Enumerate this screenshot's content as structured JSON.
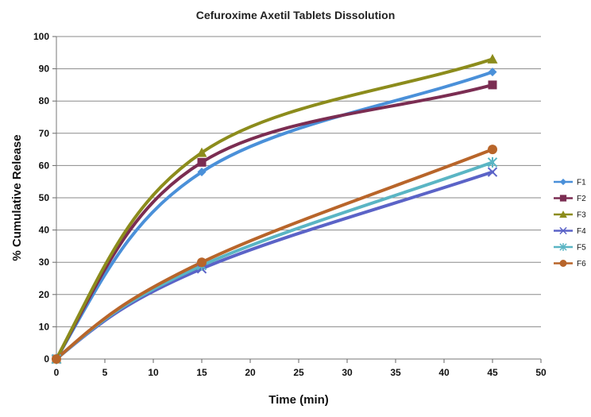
{
  "chart_data": {
    "type": "line",
    "title": "Cefuroxime Axetil Tablets Dissolution",
    "xlabel": "Time (min)",
    "ylabel": "% Cumulative Release",
    "xlim": [
      0,
      50
    ],
    "ylim": [
      0,
      100
    ],
    "x_ticks": [
      "0",
      "5",
      "10",
      "15",
      "20",
      "25",
      "30",
      "35",
      "40",
      "45",
      "50"
    ],
    "y_ticks": [
      "0",
      "10",
      "20",
      "30",
      "40",
      "50",
      "60",
      "70",
      "80",
      "90",
      "100"
    ],
    "grid": "horizontal",
    "legend_position": "right",
    "x": [
      0,
      15,
      45
    ],
    "series": [
      {
        "name": "F1",
        "values": [
          0,
          58,
          89
        ],
        "color": "#4a90d9",
        "marker": "diamond"
      },
      {
        "name": "F2",
        "values": [
          0,
          61,
          85
        ],
        "color": "#7b2d52",
        "marker": "square"
      },
      {
        "name": "F3",
        "values": [
          0,
          64,
          93
        ],
        "color": "#8c8c1c",
        "marker": "triangle"
      },
      {
        "name": "F4",
        "values": [
          0,
          28,
          58
        ],
        "color": "#5b63c7",
        "marker": "x"
      },
      {
        "name": "F5",
        "values": [
          0,
          29,
          61
        ],
        "color": "#5ab5c4",
        "marker": "star"
      },
      {
        "name": "F6",
        "values": [
          0,
          30,
          65
        ],
        "color": "#b8652a",
        "marker": "circle"
      }
    ]
  }
}
